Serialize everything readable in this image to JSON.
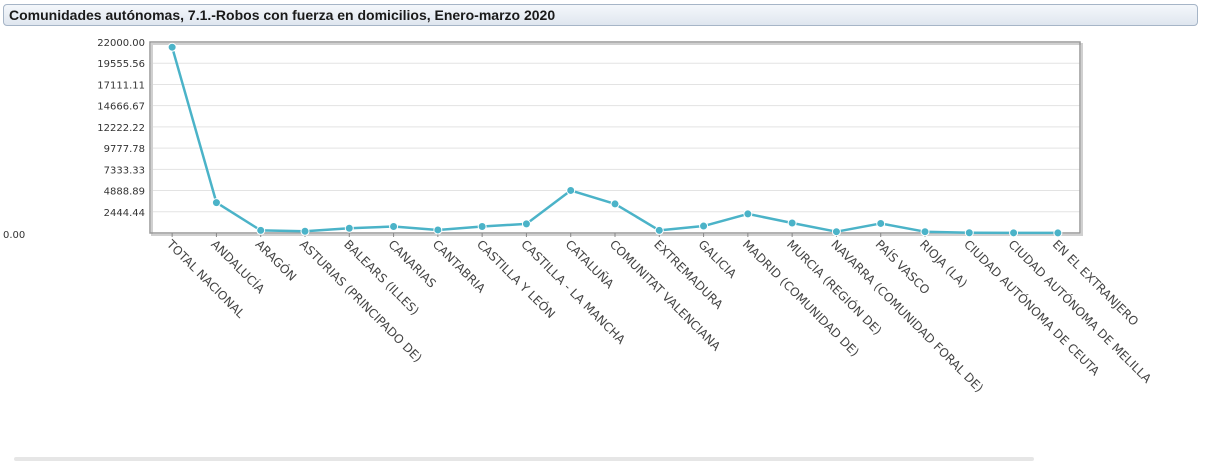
{
  "chart_data": {
    "type": "line",
    "title": "Comunidades autónomas, 7.1.-Robos con fuerza en domicilios, Enero-marzo 2020",
    "xlabel": "",
    "ylabel": "",
    "ylim": [
      0,
      22000
    ],
    "yticks": [
      "22000.00",
      "19555.56",
      "17111.11",
      "14666.67",
      "12222.22",
      "9777.78",
      "7333.33",
      "4888.89",
      "2444.44",
      "0.00"
    ],
    "grid": true,
    "legend": "none",
    "color": "#4bb3c8",
    "categories": [
      "TOTAL NACIONAL",
      "ANDALUCÍA",
      "ARAGÓN",
      "ASTURIAS (PRINCIPADO DE)",
      "BALEARS (ILLES)",
      "CANARIAS",
      "CANTABRIA",
      "CASTILLA Y LEÓN",
      "CASTILLA - LA MANCHA",
      "CATALUÑA",
      "COMUNITAT VALENCIANA",
      "EXTREMADURA",
      "GALICIA",
      "MADRID (COMUNIDAD DE)",
      "MURCIA (REGIÓN DE)",
      "NAVARRA (COMUNIDAD FORAL DE)",
      "PAÍS VASCO",
      "RIOJA (LA)",
      "CIUDAD AUTÓNOMA DE CEUTA",
      "CIUDAD AUTÓNOMA DE MELILLA",
      "EN EL EXTRANJERO"
    ],
    "values": [
      21400,
      3500,
      300,
      200,
      550,
      750,
      350,
      750,
      1050,
      4900,
      3350,
      300,
      800,
      2200,
      1150,
      150,
      1100,
      150,
      30,
      20,
      10
    ]
  }
}
